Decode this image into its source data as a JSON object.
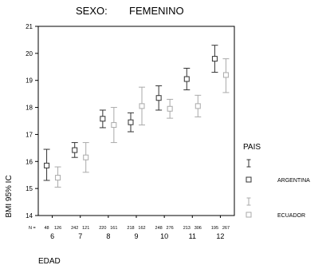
{
  "chart_data": {
    "type": "error-bar",
    "title_label": "SEXO:",
    "title_value": "FEMENINO",
    "xlabel": "EDAD",
    "ylabel": "BMI 95% IC",
    "ylim": [
      14,
      21
    ],
    "yticks": [
      14,
      15,
      16,
      17,
      18,
      19,
      20,
      21
    ],
    "categories": [
      "6",
      "7",
      "8",
      "9",
      "10",
      "11",
      "12"
    ],
    "n_label": "N =",
    "legend": {
      "title": "PAIS",
      "position": "right"
    },
    "colors": {
      "ARGENTINA": "#333333",
      "ECUADOR": "#aaaaaa",
      "frame": "#000000"
    },
    "series": [
      {
        "name": "ARGENTINA",
        "n": [
          "48",
          "242",
          "220",
          "218",
          "248",
          "213",
          "195"
        ],
        "mean": [
          15.85,
          16.42,
          17.58,
          17.45,
          18.35,
          19.05,
          19.8
        ],
        "lower": [
          15.3,
          16.15,
          17.25,
          17.1,
          17.9,
          18.65,
          19.3
        ],
        "upper": [
          16.45,
          16.7,
          17.9,
          17.8,
          18.8,
          19.45,
          20.3
        ]
      },
      {
        "name": "ECUADOR",
        "n": [
          "126",
          "121",
          "161",
          "162",
          "276",
          "306",
          "267"
        ],
        "mean": [
          15.4,
          16.15,
          17.35,
          18.05,
          17.95,
          18.05,
          19.2
        ],
        "lower": [
          15.05,
          15.6,
          16.7,
          17.35,
          17.6,
          17.65,
          18.55
        ],
        "upper": [
          15.8,
          16.7,
          18.0,
          18.75,
          18.3,
          18.45,
          19.8
        ]
      }
    ]
  }
}
